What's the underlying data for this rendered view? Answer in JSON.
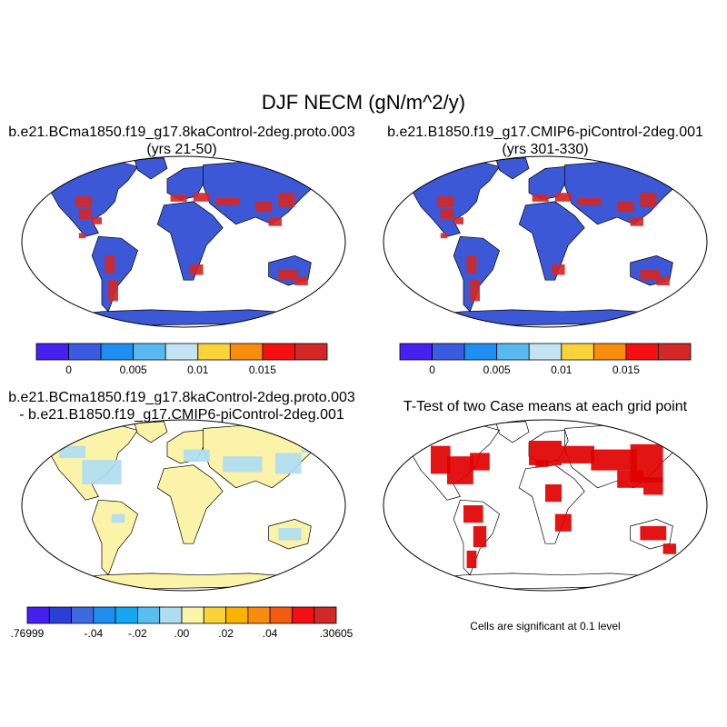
{
  "title": "DJF NECM (gN/m^2/y)",
  "panels": [
    {
      "title_line1": "b.e21.BCma1850.f19_g17.8kaControl-2deg.proto.003",
      "title_line2": "(yrs 21-50)"
    },
    {
      "title_line1": "b.e21.B1850.f19_g17.CMIP6-piControl-2deg.001",
      "title_line2": "(yrs 301-330)"
    },
    {
      "title_line1": "b.e21.BCma1850.f19_g17.8kaControl-2deg.proto.003",
      "title_line2": "- b.e21.B1850.f19_g17.CMIP6-piControl-2deg.001"
    },
    {
      "title_line1": "T-Test of two Case means at each grid point",
      "title_line2": ""
    }
  ],
  "colorbar_top": {
    "colors": [
      "#4520f0",
      "#3b5be0",
      "#1e8ef0",
      "#58b9f0",
      "#c4e4f4",
      "#fad23a",
      "#f88c0c",
      "#f41010",
      "#d22828"
    ],
    "labels": [
      "0",
      "0.005",
      "0.01",
      "0.015"
    ]
  },
  "colorbar_diff": {
    "colors": [
      "#4520f0",
      "#2a3fd8",
      "#3d6ae0",
      "#1e8ef0",
      "#14a8f4",
      "#58c0f0",
      "#b0dcf2",
      "#fbf4a8",
      "#fad23a",
      "#fab400",
      "#f88c0c",
      "#f45a10",
      "#f41010",
      "#d22828"
    ],
    "labels": [
      ".76999",
      "-.04",
      "-.02",
      ".00",
      ".02",
      ".04",
      ".30605"
    ]
  },
  "significance_note": "Cells are significant at 0.1 level",
  "map_colors": {
    "ocean": "#ffffff",
    "land_top": "#3c58d6",
    "land_diff": "#fbf4a8",
    "diff_blue": "#b0dcf2",
    "hot": "#d22828",
    "significant": "#e00000"
  }
}
